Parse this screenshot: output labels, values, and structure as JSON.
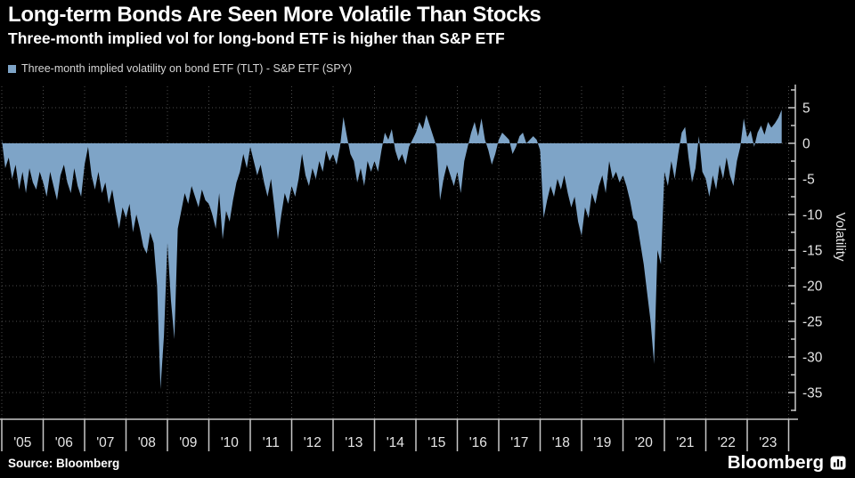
{
  "header": {
    "title": "Long-term Bonds Are Seen More Volatile Than Stocks",
    "subtitle": "Three-month implied vol for long-bond ETF is higher than S&P ETF"
  },
  "legend": {
    "label": "Three-month implied volatility on bond ETF (TLT) - S&P ETF (SPY)",
    "color": "#7ea4c7"
  },
  "footer": {
    "source": "Source: Bloomberg",
    "brand": "Bloomberg"
  },
  "chart_data": {
    "type": "area",
    "title": "Long-term Bonds Are Seen More Volatile Than Stocks",
    "subtitle": "Three-month implied vol for long-bond ETF is higher than S&P ETF",
    "ylabel": "Volatility",
    "xlabel": "",
    "legend_position": "top-left",
    "grid": "dotted",
    "baseline": 0,
    "xlim": [
      2005,
      2024
    ],
    "ylim": [
      -37.5,
      7.5
    ],
    "x_tick_labels": [
      "'05",
      "'06",
      "'07",
      "'08",
      "'09",
      "'10",
      "'11",
      "'12",
      "'13",
      "'14",
      "'15",
      "'16",
      "'17",
      "'18",
      "'19",
      "'20",
      "'21",
      "'22",
      "'23"
    ],
    "y_ticks": [
      5,
      0,
      -5,
      -10,
      -15,
      -20,
      -25,
      -30,
      -35
    ],
    "y_minor_step": 2.5,
    "colors": {
      "area": "#7ea4c7",
      "grid": "#4c4c4c",
      "axis": "#c8c8c8",
      "tick_label": "#e6e6e6",
      "background": "#000000"
    },
    "series": [
      {
        "name": "Three-month implied volatility on bond ETF (TLT) - S&P ETF (SPY)",
        "start_year": 2005,
        "interval": "monthly",
        "values": [
          0.5,
          -3.5,
          -2.0,
          -5.0,
          -3.0,
          -6.5,
          -4.0,
          -7.0,
          -3.5,
          -5.5,
          -6.5,
          -4.0,
          -5.5,
          -7.5,
          -4.0,
          -6.0,
          -8.0,
          -4.5,
          -3.0,
          -5.5,
          -7.0,
          -3.5,
          -6.0,
          -7.5,
          -3.0,
          -0.5,
          -4.5,
          -6.5,
          -4.0,
          -7.0,
          -5.5,
          -8.5,
          -6.5,
          -9.5,
          -12.0,
          -9.0,
          -10.5,
          -8.5,
          -12.5,
          -10.0,
          -12.0,
          -14.5,
          -15.5,
          -12.5,
          -14.0,
          -20.0,
          -34.5,
          -27.0,
          -14.0,
          -22.0,
          -27.5,
          -12.0,
          -9.5,
          -7.0,
          -8.5,
          -6.0,
          -7.5,
          -9.0,
          -6.5,
          -8.0,
          -8.5,
          -10.0,
          -12.0,
          -7.0,
          -13.5,
          -9.5,
          -11.0,
          -8.0,
          -5.5,
          -4.0,
          -1.5,
          -3.5,
          -0.5,
          -2.5,
          -4.5,
          -3.0,
          -5.5,
          -7.5,
          -5.0,
          -9.0,
          -13.5,
          -10.0,
          -7.0,
          -8.5,
          -6.0,
          -7.5,
          -5.0,
          -1.5,
          -4.5,
          -6.0,
          -3.5,
          -5.0,
          -2.5,
          -4.0,
          -1.0,
          -2.5,
          -1.5,
          -3.0,
          -0.5,
          3.7,
          1.0,
          -1.5,
          -2.5,
          -5.5,
          -3.5,
          -6.0,
          -2.5,
          -4.0,
          -2.5,
          -4.0,
          -1.0,
          1.5,
          0.5,
          2.0,
          -1.0,
          -2.5,
          -1.5,
          -3.0,
          -0.5,
          0.5,
          1.5,
          3.0,
          2.0,
          4.0,
          2.5,
          1.0,
          -0.5,
          -8.0,
          -5.0,
          -3.0,
          -4.5,
          -6.0,
          -4.0,
          -7.0,
          -2.5,
          -0.5,
          1.5,
          3.0,
          1.0,
          3.5,
          0.5,
          -1.0,
          -3.0,
          -1.5,
          0.5,
          1.5,
          1.0,
          0.5,
          -1.5,
          -0.5,
          1.0,
          1.5,
          0.0,
          0.5,
          1.0,
          0.5,
          -1.0,
          -10.5,
          -8.0,
          -6.0,
          -7.5,
          -5.0,
          -6.5,
          -4.5,
          -7.0,
          -9.0,
          -7.5,
          -11.0,
          -13.0,
          -9.0,
          -10.5,
          -7.0,
          -8.5,
          -6.0,
          -4.5,
          -7.0,
          -2.5,
          -5.0,
          -4.0,
          -5.5,
          -4.5,
          -6.0,
          -8.0,
          -10.5,
          -11.0,
          -14.0,
          -17.0,
          -21.0,
          -25.0,
          -31.0,
          -15.0,
          -17.0,
          -4.0,
          -6.0,
          -2.5,
          -5.0,
          -1.5,
          1.5,
          2.3,
          -2.0,
          -5.5,
          -3.5,
          1.0,
          -4.0,
          -5.0,
          -7.5,
          -4.5,
          -6.5,
          -3.0,
          -5.0,
          -2.0,
          -4.5,
          -6.0,
          -2.5,
          -0.5,
          3.5,
          0.8,
          1.8,
          -0.5,
          1.5,
          2.5,
          1.2,
          3.0,
          2.2,
          2.8,
          3.6,
          4.7
        ]
      }
    ]
  }
}
